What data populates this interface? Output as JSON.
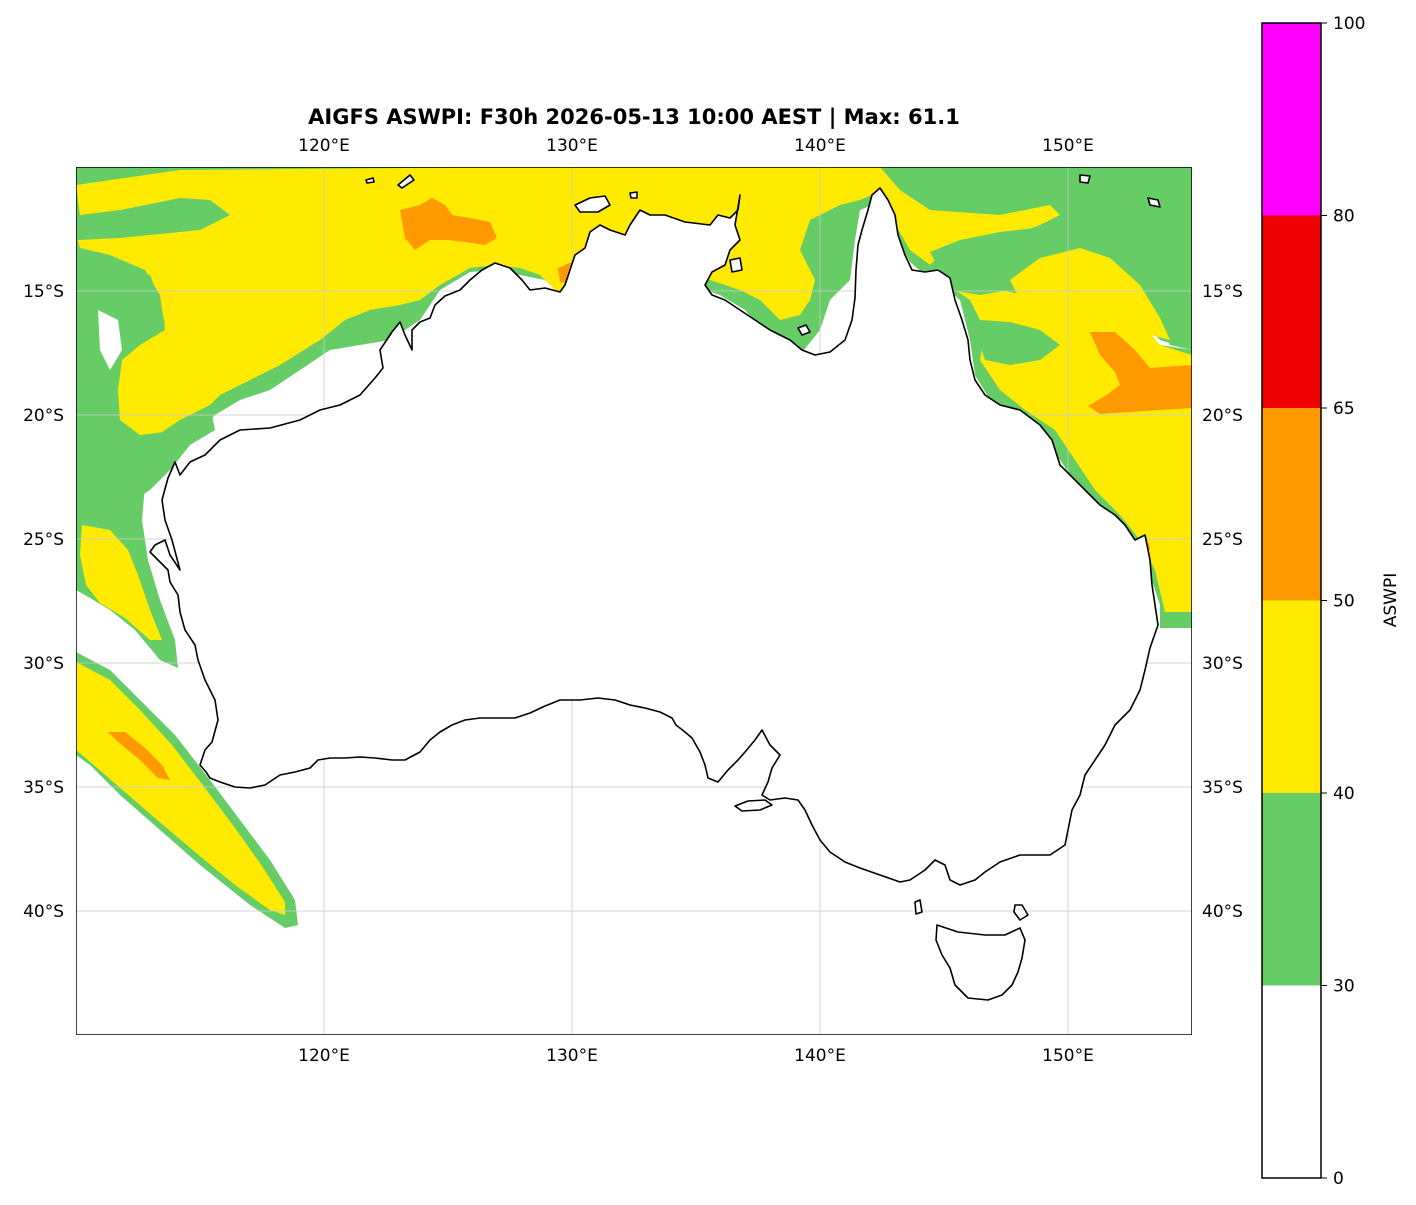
{
  "title": "AIGFS ASWPI: F30h 2026-05-13 10:00 AEST | Max: 61.1",
  "map": {
    "lon_ticks": [
      "120°E",
      "130°E",
      "140°E",
      "150°E"
    ],
    "lat_ticks": [
      "15°S",
      "20°S",
      "25°S",
      "30°S",
      "35°S",
      "40°S"
    ],
    "gridlines": true
  },
  "colorbar": {
    "label": "ASWPI",
    "ticks": [
      "0",
      "30",
      "40",
      "50",
      "65",
      "80",
      "100"
    ],
    "bands": [
      {
        "from": 0,
        "to": 30,
        "color": "#ffffff"
      },
      {
        "from": 30,
        "to": 40,
        "color": "#66cc66"
      },
      {
        "from": 40,
        "to": 50,
        "color": "#ffea00"
      },
      {
        "from": 50,
        "to": 65,
        "color": "#ff9900"
      },
      {
        "from": 65,
        "to": 80,
        "color": "#ee0000"
      },
      {
        "from": 80,
        "to": 100,
        "color": "#ff00ff"
      }
    ]
  },
  "colors": {
    "green": "#66cc66",
    "yellow": "#ffea00",
    "orange": "#ff9900",
    "coast": "#000000"
  }
}
